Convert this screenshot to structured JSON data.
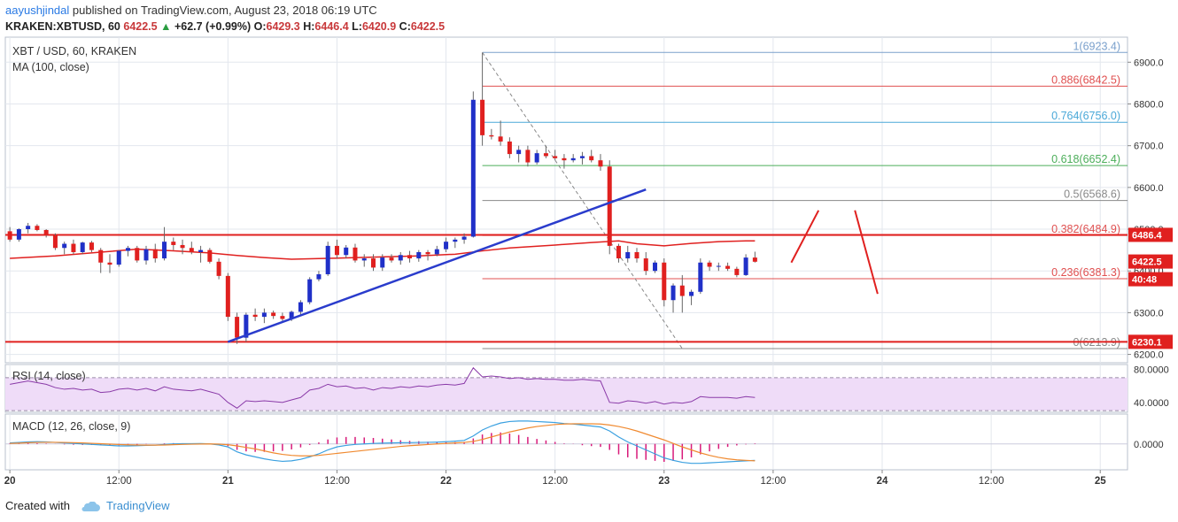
{
  "header": {
    "user": "aayushjindal",
    "published_text": " published on TradingView.com, August 23, 2018 06:19 UTC",
    "symbol": "KRAKEN:XBTUSD, 60",
    "last": "6422.5",
    "change_arrow": "▲",
    "change": "+62.7 (+0.99%)",
    "o_label": "O:",
    "o_val": "6429.3",
    "h_label": "H:",
    "h_val": "6446.4",
    "l_label": "L:",
    "l_val": "6420.9",
    "c_label": "C:",
    "c_val": "6422.5"
  },
  "footer": {
    "created_with": "Created with",
    "brand": "TradingView"
  },
  "colors": {
    "up": "#2030c8",
    "down": "#e0201f",
    "ma": "#e0201f",
    "trend": "#2a3ccc",
    "fib": [
      "#7aa0cc",
      "#e05050",
      "#4aa8d8",
      "#4cae5a",
      "#888888",
      "#e05050",
      "#e05050",
      "#888888"
    ],
    "rsi_fill": "#efdcf8",
    "rsi_line": "#8a3aa8",
    "macd": "#3aa0e0",
    "signal": "#f08a30",
    "hist": "#d81a7a"
  },
  "chart_data": {
    "type": "candlestick",
    "title": "XBT / USD, 60, KRAKEN",
    "indicator_label": "MA (100, close)",
    "ylim": [
      6180,
      6960
    ],
    "yticks": [
      6200,
      6300,
      6400,
      6500,
      6600,
      6700,
      6800,
      6900
    ],
    "ytick_labels": [
      "6200.0",
      "6300.0",
      "6400.0",
      "6500.0",
      "6600.0",
      "6700.0",
      "6800.0",
      "6900.0"
    ],
    "x_labels": [
      "20",
      "12:00",
      "21",
      "12:00",
      "22",
      "12:00",
      "23",
      "12:00",
      "24",
      "12:00",
      "25"
    ],
    "x_label_hours": [
      0,
      12,
      24,
      36,
      48,
      60,
      72,
      84,
      96,
      108,
      120
    ],
    "x_range_hours": [
      -0.5,
      123
    ],
    "candles": [
      [
        6495,
        6505,
        6470,
        6475
      ],
      [
        6475,
        6502,
        6470,
        6500
      ],
      [
        6500,
        6515,
        6490,
        6508
      ],
      [
        6508,
        6512,
        6495,
        6498
      ],
      [
        6498,
        6500,
        6480,
        6485
      ],
      [
        6485,
        6490,
        6450,
        6455
      ],
      [
        6455,
        6470,
        6440,
        6465
      ],
      [
        6465,
        6475,
        6440,
        6445
      ],
      [
        6445,
        6470,
        6440,
        6468
      ],
      [
        6468,
        6472,
        6445,
        6450
      ],
      [
        6450,
        6455,
        6395,
        6420
      ],
      [
        6420,
        6440,
        6395,
        6415
      ],
      [
        6415,
        6450,
        6410,
        6448
      ],
      [
        6448,
        6460,
        6435,
        6455
      ],
      [
        6455,
        6460,
        6420,
        6425
      ],
      [
        6425,
        6460,
        6415,
        6452
      ],
      [
        6452,
        6465,
        6420,
        6430
      ],
      [
        6430,
        6505,
        6425,
        6470
      ],
      [
        6470,
        6480,
        6450,
        6462
      ],
      [
        6462,
        6475,
        6440,
        6455
      ],
      [
        6455,
        6470,
        6440,
        6445
      ],
      [
        6445,
        6460,
        6420,
        6450
      ],
      [
        6450,
        6455,
        6418,
        6422
      ],
      [
        6422,
        6430,
        6380,
        6388
      ],
      [
        6388,
        6395,
        6280,
        6290
      ],
      [
        6290,
        6300,
        6225,
        6240
      ],
      [
        6240,
        6300,
        6230,
        6295
      ],
      [
        6295,
        6310,
        6280,
        6290
      ],
      [
        6290,
        6310,
        6275,
        6300
      ],
      [
        6300,
        6305,
        6285,
        6292
      ],
      [
        6292,
        6300,
        6280,
        6285
      ],
      [
        6285,
        6305,
        6280,
        6302
      ],
      [
        6302,
        6330,
        6295,
        6325
      ],
      [
        6325,
        6385,
        6320,
        6380
      ],
      [
        6380,
        6400,
        6375,
        6392
      ],
      [
        6392,
        6470,
        6388,
        6460
      ],
      [
        6460,
        6475,
        6430,
        6438
      ],
      [
        6438,
        6462,
        6430,
        6456
      ],
      [
        6456,
        6465,
        6420,
        6425
      ],
      [
        6425,
        6440,
        6410,
        6430
      ],
      [
        6430,
        6440,
        6400,
        6408
      ],
      [
        6408,
        6440,
        6400,
        6432
      ],
      [
        6432,
        6440,
        6420,
        6425
      ],
      [
        6425,
        6445,
        6415,
        6438
      ],
      [
        6438,
        6448,
        6420,
        6430
      ],
      [
        6430,
        6450,
        6422,
        6445
      ],
      [
        6445,
        6450,
        6425,
        6440
      ],
      [
        6440,
        6460,
        6435,
        6452
      ],
      [
        6452,
        6480,
        6445,
        6470
      ],
      [
        6470,
        6480,
        6455,
        6475
      ],
      [
        6475,
        6490,
        6465,
        6482
      ],
      [
        6482,
        6830,
        6480,
        6810
      ],
      [
        6810,
        6923,
        6700,
        6725
      ],
      [
        6725,
        6740,
        6715,
        6722
      ],
      [
        6722,
        6760,
        6700,
        6710
      ],
      [
        6710,
        6720,
        6670,
        6680
      ],
      [
        6680,
        6700,
        6660,
        6690
      ],
      [
        6690,
        6700,
        6650,
        6660
      ],
      [
        6660,
        6690,
        6655,
        6682
      ],
      [
        6682,
        6700,
        6670,
        6675
      ],
      [
        6675,
        6690,
        6665,
        6670
      ],
      [
        6670,
        6680,
        6645,
        6665
      ],
      [
        6665,
        6680,
        6660,
        6670
      ],
      [
        6670,
        6685,
        6655,
        6675
      ],
      [
        6675,
        6690,
        6660,
        6665
      ],
      [
        6665,
        6680,
        6640,
        6650
      ],
      [
        6650,
        6665,
        6440,
        6460
      ],
      [
        6460,
        6465,
        6420,
        6430
      ],
      [
        6430,
        6460,
        6420,
        6445
      ],
      [
        6445,
        6455,
        6420,
        6430
      ],
      [
        6430,
        6445,
        6390,
        6400
      ],
      [
        6400,
        6425,
        6395,
        6420
      ],
      [
        6420,
        6430,
        6315,
        6330
      ],
      [
        6330,
        6370,
        6300,
        6365
      ],
      [
        6365,
        6390,
        6300,
        6340
      ],
      [
        6340,
        6355,
        6318,
        6350
      ],
      [
        6350,
        6430,
        6345,
        6420
      ],
      [
        6420,
        6425,
        6400,
        6410
      ],
      [
        6410,
        6420,
        6400,
        6412
      ],
      [
        6412,
        6420,
        6400,
        6405
      ],
      [
        6405,
        6410,
        6385,
        6390
      ],
      [
        6390,
        6440,
        6388,
        6432
      ],
      [
        6432,
        6446,
        6420,
        6422
      ]
    ],
    "ma_100": [
      [
        0,
        6430
      ],
      [
        5,
        6436
      ],
      [
        10,
        6445
      ],
      [
        14,
        6452
      ],
      [
        18,
        6448
      ],
      [
        22,
        6443
      ],
      [
        25,
        6437
      ],
      [
        28,
        6432
      ],
      [
        31,
        6428
      ],
      [
        35,
        6430
      ],
      [
        40,
        6433
      ],
      [
        45,
        6436
      ],
      [
        49,
        6440
      ],
      [
        52,
        6448
      ],
      [
        55,
        6455
      ],
      [
        60,
        6462
      ],
      [
        64,
        6468
      ],
      [
        67,
        6472
      ],
      [
        69,
        6465
      ],
      [
        72,
        6460
      ],
      [
        75,
        6466
      ],
      [
        78,
        6470
      ],
      [
        81,
        6472
      ],
      [
        82,
        6472
      ]
    ],
    "fib_levels": [
      {
        "ratio": "1",
        "price": 6923.4,
        "label": "1(6923.4)"
      },
      {
        "ratio": "0.886",
        "price": 6842.5,
        "label": "0.886(6842.5)"
      },
      {
        "ratio": "0.764",
        "price": 6756.0,
        "label": "0.764(6756.0)"
      },
      {
        "ratio": "0.618",
        "price": 6652.4,
        "label": "0.618(6652.4)"
      },
      {
        "ratio": "0.5",
        "price": 6568.6,
        "label": "0.5(6568.6)"
      },
      {
        "ratio": "0.382",
        "price": 6484.9,
        "label": "0.382(6484.9)"
      },
      {
        "ratio": "0.236",
        "price": 6381.3,
        "label": "0.236(6381.3)"
      },
      {
        "ratio": "0",
        "price": 6213.9,
        "label": "0(6213.9)"
      }
    ],
    "fib_anchor_hours": [
      52,
      74
    ],
    "fib_range_hours": [
      52,
      123
    ],
    "resistance": 6486.4,
    "resistance_label": "6486.4",
    "support": 6230.1,
    "support_label": "6230.1",
    "price_label": "6422.5",
    "countdown_label": "40:48",
    "trendline": [
      [
        24,
        6230
      ],
      [
        70,
        6595
      ]
    ],
    "scenario_paths": [
      [
        [
          86,
          6420
        ],
        [
          89,
          6545
        ]
      ],
      [
        [
          93,
          6545
        ],
        [
          95.5,
          6345
        ]
      ]
    ],
    "rsi": {
      "label": "RSI (14, close)",
      "band": [
        30,
        70
      ],
      "ylim": [
        28,
        86
      ],
      "yticks": [
        40,
        80
      ],
      "ytick_labels": [
        "40.0000",
        "80.0000"
      ],
      "values": [
        62,
        64,
        66,
        64,
        62,
        58,
        56,
        57,
        55,
        56,
        52,
        53,
        56,
        57,
        55,
        57,
        54,
        59,
        56,
        55,
        54,
        56,
        53,
        50,
        40,
        33,
        42,
        41,
        42,
        41,
        40,
        43,
        46,
        55,
        57,
        62,
        59,
        60,
        57,
        58,
        55,
        58,
        57,
        59,
        58,
        60,
        59,
        61,
        62,
        61,
        63,
        82,
        71,
        72,
        71,
        69,
        70,
        68,
        69,
        68,
        68,
        67,
        67,
        68,
        67,
        66,
        40,
        39,
        42,
        41,
        39,
        41,
        38,
        40,
        39,
        41,
        47,
        46,
        46,
        46,
        45,
        47,
        46
      ]
    },
    "macd": {
      "label": "MACD (12, 26, close, 9)",
      "ylim": [
        -26,
        30
      ],
      "yticks": [
        0
      ],
      "ytick_labels": [
        "0.0000"
      ],
      "macd": [
        1,
        1.5,
        2,
        2.2,
        2,
        1.5,
        1,
        0.5,
        0,
        -0.5,
        -1,
        -1.5,
        -2,
        -2,
        -1.8,
        -1.5,
        -1.2,
        -0.5,
        0,
        0.2,
        0.3,
        0.4,
        0,
        -1,
        -3,
        -8,
        -11,
        -13,
        -15,
        -16.5,
        -17.5,
        -17,
        -15.5,
        -13,
        -10,
        -6,
        -3,
        -1.5,
        -0.5,
        0,
        0.5,
        0.8,
        1,
        1.2,
        1.3,
        1.5,
        1.6,
        1.8,
        2.2,
        2.8,
        3.5,
        8,
        14,
        18,
        21,
        22.5,
        23,
        23,
        22.5,
        22,
        21.5,
        20.5,
        20,
        19,
        18,
        17,
        13,
        7,
        2,
        -2,
        -6,
        -10,
        -14,
        -16.5,
        -18.5,
        -19.5,
        -19.5,
        -19,
        -18.5,
        -18,
        -17.5,
        -17,
        -16.5
      ],
      "signal": [
        0.5,
        0.8,
        1.2,
        1.5,
        1.6,
        1.6,
        1.5,
        1.3,
        1,
        0.6,
        0.2,
        -0.2,
        -0.6,
        -0.9,
        -1.1,
        -1.2,
        -1.2,
        -1.1,
        -0.8,
        -0.5,
        -0.3,
        -0.1,
        0,
        -0.2,
        -0.8,
        -2,
        -3.5,
        -5,
        -7,
        -9,
        -10.5,
        -11.5,
        -12,
        -12,
        -11.5,
        -10.5,
        -9.5,
        -8.5,
        -7.5,
        -6.5,
        -5.5,
        -4.5,
        -3.5,
        -2.5,
        -1.8,
        -1.2,
        -0.6,
        0,
        0.5,
        1,
        1.5,
        2.5,
        4.5,
        7,
        9.5,
        12,
        14,
        16,
        17.5,
        18.5,
        19.5,
        20,
        20.2,
        20.3,
        20.2,
        20,
        19,
        17.5,
        15.5,
        13,
        10,
        7,
        4,
        0.5,
        -3,
        -6,
        -9,
        -11.5,
        -13.5,
        -15,
        -16,
        -16.5,
        -17
      ],
      "hist": [
        0.5,
        0.7,
        0.8,
        0.7,
        0.4,
        -0.1,
        -0.5,
        -0.8,
        -1,
        -1.1,
        -1.2,
        -1.3,
        -1.4,
        -1.1,
        -0.7,
        -0.3,
        0,
        0.6,
        0.8,
        0.7,
        0.6,
        0.5,
        0,
        -0.8,
        -2.2,
        -6,
        -7.5,
        -8,
        -8,
        -7.5,
        -7,
        -5.5,
        -3.5,
        -1,
        1.5,
        4.5,
        6.5,
        7,
        7,
        6.5,
        6,
        5.3,
        4.5,
        3.7,
        3.1,
        2.7,
        2.2,
        1.8,
        1.7,
        1.8,
        2,
        5.5,
        9.5,
        11,
        11.5,
        10.5,
        9,
        7,
        5,
        3.5,
        2,
        0.5,
        -0.2,
        -1.3,
        -2.2,
        -3,
        -6,
        -10.5,
        -13.5,
        -15,
        -16,
        -17,
        -18,
        -17,
        -15.5,
        -13.5,
        -10.5,
        -7.5,
        -5,
        -3,
        -1.5,
        -0.5,
        0.5
      ]
    }
  }
}
